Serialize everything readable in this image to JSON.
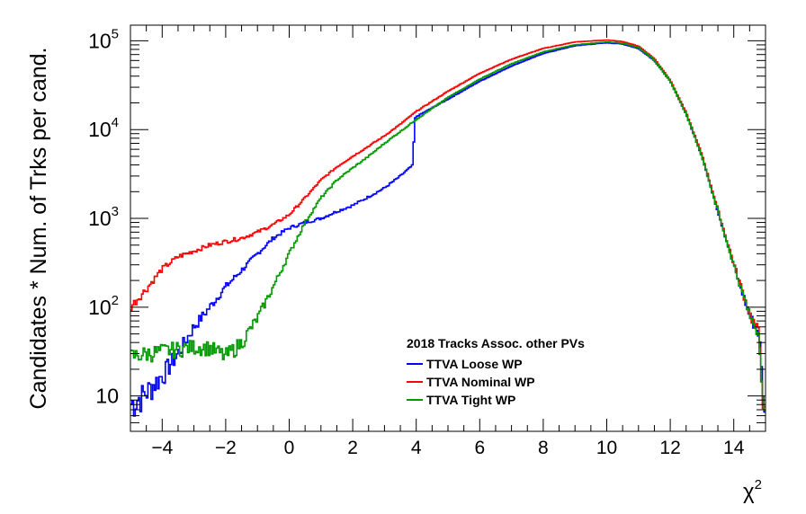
{
  "chart_data": {
    "type": "line",
    "style": "histogram-step",
    "title": "",
    "xlabel": "χ",
    "xlabel_superscript": "2",
    "ylabel": "Candidates * Num. of Trks per cand.",
    "xlim": [
      -5,
      15
    ],
    "ylim": [
      4,
      150000
    ],
    "yscale": "log",
    "grid": false,
    "x_ticks": [
      {
        "value": -4,
        "label": "−4"
      },
      {
        "value": -2,
        "label": "−2"
      },
      {
        "value": 0,
        "label": "0"
      },
      {
        "value": 2,
        "label": "2"
      },
      {
        "value": 4,
        "label": "4"
      },
      {
        "value": 6,
        "label": "6"
      },
      {
        "value": 8,
        "label": "8"
      },
      {
        "value": 10,
        "label": "10"
      },
      {
        "value": 12,
        "label": "12"
      },
      {
        "value": 14,
        "label": "14"
      }
    ],
    "y_ticks": [
      {
        "value": 10,
        "base": "10",
        "exp": ""
      },
      {
        "value": 100,
        "base": "10",
        "exp": "2"
      },
      {
        "value": 1000,
        "base": "10",
        "exp": "3"
      },
      {
        "value": 10000,
        "base": "10",
        "exp": "4"
      },
      {
        "value": 100000,
        "base": "10",
        "exp": "5"
      }
    ],
    "legend": {
      "placement": "lower-center",
      "header": "2018 Tracks Assoc. other PVs"
    },
    "series": [
      {
        "name": "TTVA Loose WP",
        "color": "#0000ff",
        "x": [
          -5,
          -4.5,
          -4,
          -3.5,
          -3,
          -2.5,
          -2,
          -1.5,
          -1,
          -0.5,
          0,
          0.5,
          1,
          1.5,
          2,
          2.5,
          3,
          3.5,
          3.9,
          3.95,
          4,
          5,
          6,
          7,
          8,
          9,
          10,
          10.5,
          11,
          11.5,
          12,
          12.5,
          13,
          13.5,
          14,
          14.5,
          14.8,
          15
        ],
        "y": [
          8,
          11,
          17,
          30,
          60,
          100,
          170,
          260,
          400,
          600,
          780,
          900,
          1000,
          1200,
          1400,
          1750,
          2200,
          3000,
          4000,
          13000,
          14000,
          22000,
          35000,
          52000,
          72000,
          88000,
          95000,
          92000,
          82000,
          60000,
          35000,
          15000,
          5000,
          1200,
          300,
          80,
          50,
          4
        ]
      },
      {
        "name": "TTVA Nominal WP",
        "color": "#ff0000",
        "x": [
          -5,
          -4.5,
          -4,
          -3.5,
          -3,
          -2.5,
          -2,
          -1.5,
          -1,
          -0.5,
          0,
          0.5,
          1,
          1.5,
          2,
          2.5,
          3,
          3.5,
          4,
          5,
          6,
          7,
          8,
          9,
          10,
          10.5,
          11,
          11.5,
          12,
          12.5,
          13,
          13.5,
          14,
          14.5,
          14.8,
          15
        ],
        "y": [
          100,
          160,
          270,
          370,
          430,
          500,
          550,
          600,
          700,
          850,
          1100,
          1700,
          2700,
          3800,
          5000,
          6500,
          8500,
          11500,
          16000,
          27000,
          43000,
          62000,
          82000,
          97000,
          102000,
          98000,
          87000,
          63000,
          36000,
          15500,
          5200,
          1250,
          310,
          85,
          50,
          4
        ]
      },
      {
        "name": "TTVA Tight WP",
        "color": "#009900",
        "x": [
          -5,
          -4.5,
          -4,
          -3.5,
          -3,
          -2.5,
          -2,
          -1.5,
          -1,
          -0.5,
          0,
          0.5,
          1,
          1.5,
          2,
          2.5,
          3,
          3.5,
          4,
          5,
          6,
          7,
          8,
          9,
          10,
          10.5,
          11,
          11.5,
          12,
          12.5,
          13,
          13.5,
          14,
          14.5,
          14.8,
          15
        ],
        "y": [
          28,
          30,
          32,
          34,
          36,
          35,
          28,
          40,
          75,
          170,
          400,
          900,
          1700,
          2700,
          3700,
          5000,
          7000,
          9500,
          13000,
          23000,
          37000,
          55000,
          75000,
          90000,
          97000,
          94000,
          84000,
          61000,
          35000,
          15000,
          5000,
          1200,
          300,
          80,
          50,
          4
        ]
      }
    ]
  }
}
